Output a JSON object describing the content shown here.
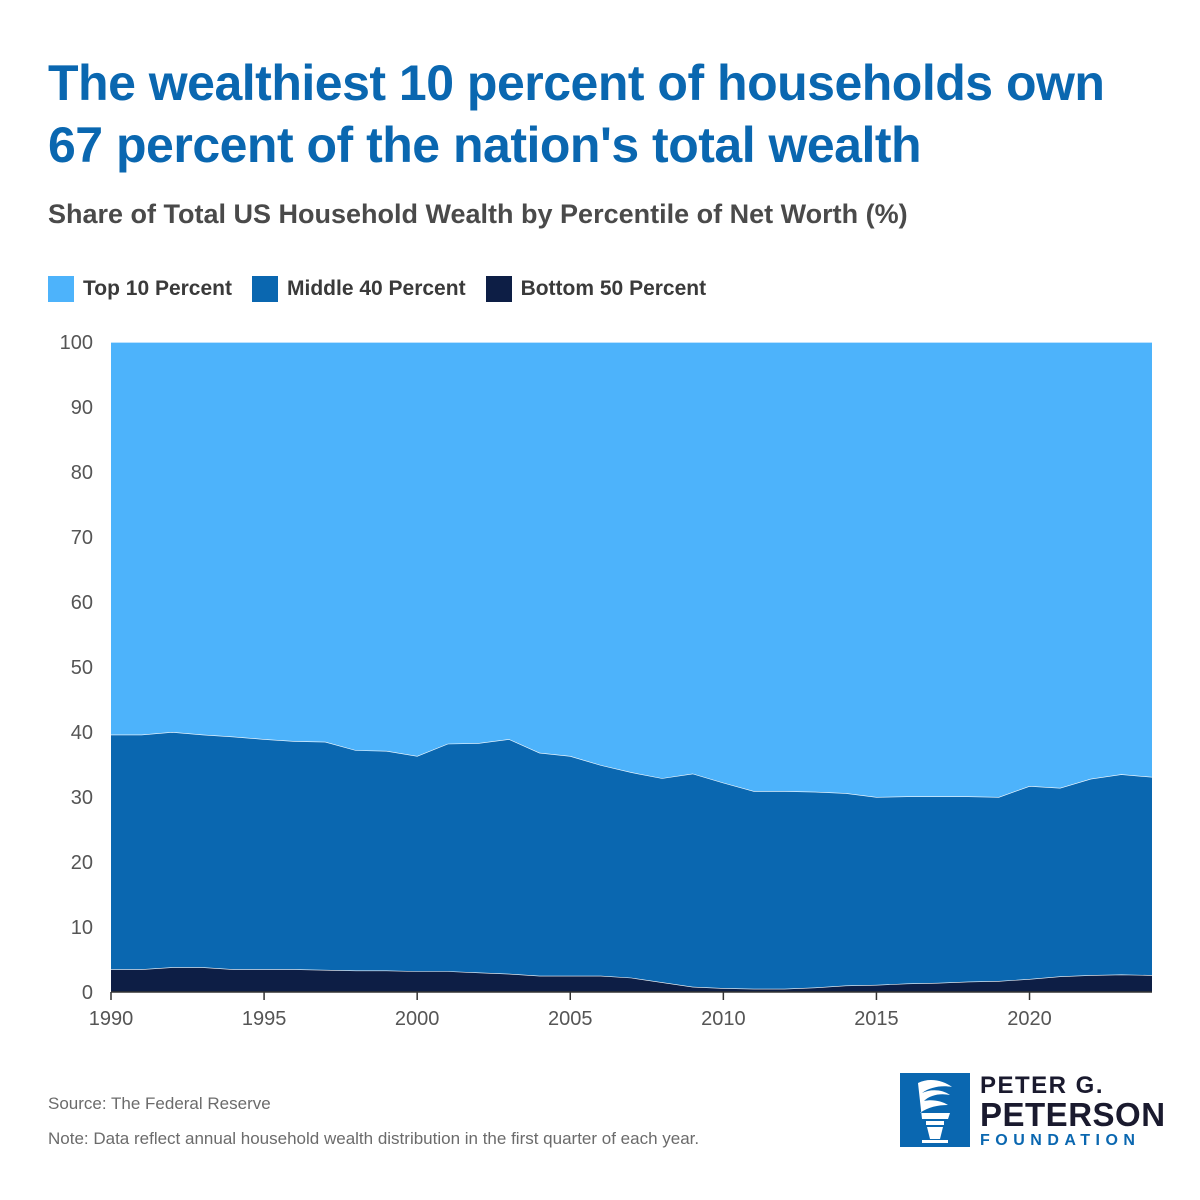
{
  "title": "The wealthiest 10 percent of households own 67 percent of the nation's total wealth",
  "subtitle": "Share of Total US Household Wealth by Percentile of Net Worth (%)",
  "colors": {
    "top10": "#4db3fb",
    "middle40": "#0a67b0",
    "bottom50": "#0d1e45",
    "title": "#0a67b0"
  },
  "legend": [
    {
      "label": "Top 10 Percent",
      "color": "#4db3fb"
    },
    {
      "label": "Middle 40 Percent",
      "color": "#0a67b0"
    },
    {
      "label": "Bottom 50 Percent",
      "color": "#0d1e45"
    }
  ],
  "chart_data": {
    "type": "area",
    "stacked": true,
    "x": [
      1990,
      1991,
      1992,
      1993,
      1994,
      1995,
      1996,
      1997,
      1998,
      1999,
      2000,
      2001,
      2002,
      2003,
      2004,
      2005,
      2006,
      2007,
      2008,
      2009,
      2010,
      2011,
      2012,
      2013,
      2014,
      2015,
      2016,
      2017,
      2018,
      2019,
      2020,
      2021,
      2022,
      2023,
      2024
    ],
    "series": [
      {
        "name": "Bottom 50 Percent",
        "values": [
          3.5,
          3.5,
          3.8,
          3.8,
          3.5,
          3.5,
          3.5,
          3.4,
          3.3,
          3.3,
          3.2,
          3.2,
          3.0,
          2.8,
          2.5,
          2.5,
          2.5,
          2.2,
          1.5,
          0.8,
          0.6,
          0.5,
          0.5,
          0.7,
          1.0,
          1.1,
          1.3,
          1.4,
          1.6,
          1.7,
          2.0,
          2.4,
          2.6,
          2.7,
          2.6
        ]
      },
      {
        "name": "Middle 40 Percent",
        "values": [
          36.1,
          36.1,
          36.2,
          35.8,
          35.8,
          35.4,
          35.1,
          35.1,
          33.9,
          33.8,
          33.1,
          35.0,
          35.3,
          36.1,
          34.3,
          33.8,
          32.4,
          31.6,
          31.4,
          32.8,
          31.6,
          30.4,
          30.4,
          30.1,
          29.6,
          28.9,
          28.8,
          28.7,
          28.5,
          28.3,
          29.7,
          29.0,
          30.2,
          30.8,
          30.5
        ]
      },
      {
        "name": "Top 10 Percent",
        "values": [
          60.4,
          60.4,
          60.0,
          60.4,
          60.7,
          61.1,
          61.4,
          61.5,
          62.8,
          62.9,
          63.7,
          61.8,
          61.7,
          61.1,
          63.2,
          63.7,
          65.1,
          66.2,
          67.1,
          66.4,
          67.8,
          69.1,
          69.1,
          69.2,
          69.4,
          70.0,
          69.9,
          69.9,
          69.9,
          70.0,
          68.3,
          68.6,
          67.2,
          66.5,
          66.9
        ]
      }
    ],
    "xlim": [
      1990,
      2024
    ],
    "ylim": [
      0,
      100
    ],
    "xticks": [
      "1990",
      "1995",
      "2000",
      "2005",
      "2010",
      "2015",
      "2020"
    ],
    "yticks": [
      "0",
      "10",
      "20",
      "30",
      "40",
      "50",
      "60",
      "70",
      "80",
      "90",
      "100"
    ],
    "legend_position": "top-left"
  },
  "footer": {
    "source": "Source: The Federal Reserve",
    "note": "Note: Data reflect annual household wealth distribution in the first quarter of each year."
  },
  "logo": {
    "line1": "PETER G.",
    "line2": "PETERSON",
    "line3": "FOUNDATION"
  }
}
